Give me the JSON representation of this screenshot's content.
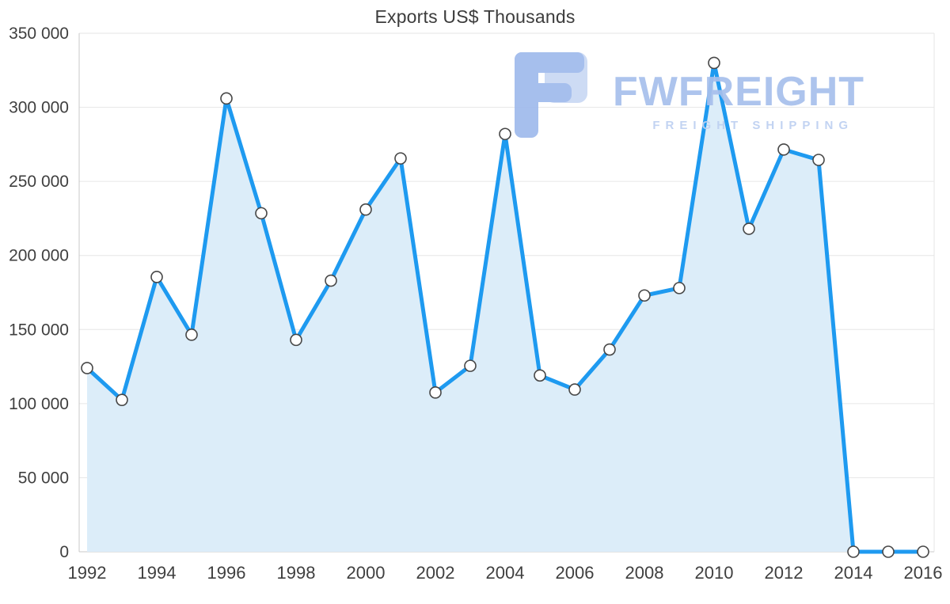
{
  "title": "Exports US$ Thousands",
  "watermark": {
    "brand": "FWFREIGHT",
    "tagline": "FREIGHT SHIPPING",
    "logo_color": "#9fbaec",
    "logo_light_color": "#c9d8f4"
  },
  "chart_data": {
    "type": "area",
    "title": "Exports US$ Thousands",
    "x": [
      1992,
      1993,
      1994,
      1995,
      1996,
      1997,
      1998,
      1999,
      2000,
      2001,
      2002,
      2003,
      2004,
      2005,
      2006,
      2007,
      2008,
      2009,
      2010,
      2011,
      2012,
      2013,
      2014,
      2015,
      2016
    ],
    "values": [
      124000,
      102500,
      185500,
      146500,
      306000,
      228500,
      143000,
      183000,
      231000,
      265500,
      107500,
      125500,
      282000,
      119000,
      109500,
      136500,
      173000,
      178000,
      330000,
      218000,
      271500,
      264500,
      0,
      0,
      0
    ],
    "xlabel": "",
    "ylabel": "",
    "ylim": [
      0,
      350000
    ],
    "ytick_step": 50000,
    "ytick_labels": [
      "0",
      "50 000",
      "100 000",
      "150 000",
      "200 000",
      "250 000",
      "300 000",
      "350 000"
    ],
    "xtick_labels": [
      "1992",
      "1994",
      "1996",
      "1998",
      "2000",
      "2002",
      "2004",
      "2006",
      "2008",
      "2010",
      "2012",
      "2014",
      "2016"
    ],
    "grid": "horizontal",
    "legend": "none",
    "line_color": "#1e9af0",
    "fill_color": "#dcedf9",
    "marker_fill": "#ffffff",
    "marker_stroke": "#474747",
    "grid_color": "#e6e6e6",
    "axis_color": "#c9c9c9",
    "tick_label_color": "#3f3f3f"
  }
}
